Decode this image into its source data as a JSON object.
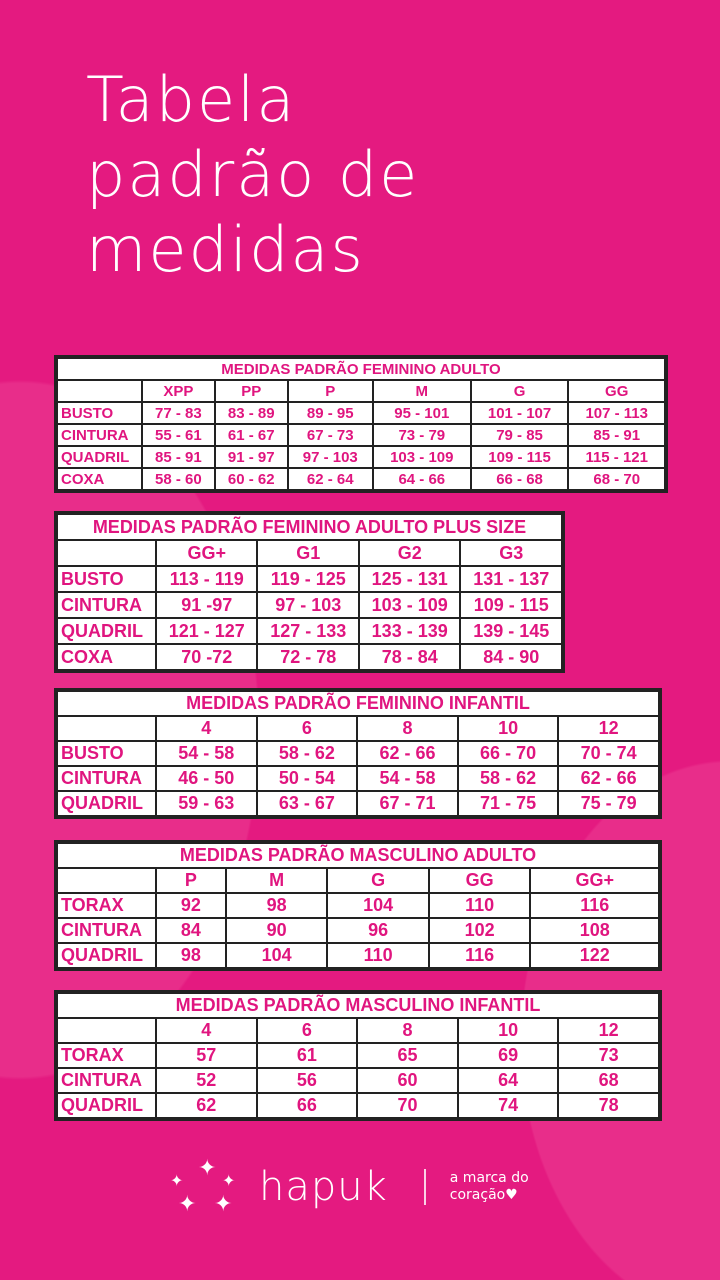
{
  "title": {
    "line1": "Tabela",
    "line2": "padrão de",
    "line3": "medidas"
  },
  "colors": {
    "background": "#e41a80",
    "text_in_table": "#e0157f"
  },
  "tables": [
    {
      "title": "MEDIDAS PADRÃO FEMININO ADULTO",
      "sizes": [
        "XPP",
        "PP",
        "P",
        "M",
        "G",
        "GG"
      ],
      "rows": [
        {
          "label": "BUSTO",
          "values": [
            "77 - 83",
            "83 - 89",
            "89 - 95",
            "95 - 101",
            "101 - 107",
            "107 - 113"
          ]
        },
        {
          "label": "CINTURA",
          "values": [
            "55 - 61",
            "61 - 67",
            "67 - 73",
            "73 - 79",
            "79 - 85",
            "85 - 91"
          ]
        },
        {
          "label": "QUADRIL",
          "values": [
            "85 - 91",
            "91 - 97",
            "97 - 103",
            "103 - 109",
            "109 - 115",
            "115 - 121"
          ]
        },
        {
          "label": "COXA",
          "values": [
            "58 - 60",
            "60 - 62",
            "62 - 64",
            "64 - 66",
            "66 - 68",
            "68 - 70"
          ]
        }
      ]
    },
    {
      "title": "MEDIDAS PADRÃO FEMININO ADULTO PLUS SIZE",
      "sizes": [
        "GG+",
        "G1",
        "G2",
        "G3"
      ],
      "rows": [
        {
          "label": "BUSTO",
          "values": [
            "113 - 119",
            "119 - 125",
            "125 - 131",
            "131 - 137"
          ]
        },
        {
          "label": "CINTURA",
          "values": [
            "91 -97",
            "97 - 103",
            "103 - 109",
            "109 - 115"
          ]
        },
        {
          "label": "QUADRIL",
          "values": [
            "121 - 127",
            "127 - 133",
            "133 - 139",
            "139 - 145"
          ]
        },
        {
          "label": "COXA",
          "values": [
            "70 -72",
            "72 - 78",
            "78 - 84",
            "84 - 90"
          ]
        }
      ]
    },
    {
      "title": "MEDIDAS PADRÃO FEMININO INFANTIL",
      "sizes": [
        "4",
        "6",
        "8",
        "10",
        "12"
      ],
      "rows": [
        {
          "label": "BUSTO",
          "values": [
            "54 - 58",
            "58 - 62",
            "62 - 66",
            "66 - 70",
            "70 - 74"
          ]
        },
        {
          "label": "CINTURA",
          "values": [
            "46 - 50",
            "50 - 54",
            "54 - 58",
            "58 - 62",
            "62 - 66"
          ]
        },
        {
          "label": "QUADRIL",
          "values": [
            "59 - 63",
            "63 - 67",
            "67 - 71",
            "71 - 75",
            "75 - 79"
          ]
        }
      ]
    },
    {
      "title": "MEDIDAS PADRÃO MASCULINO ADULTO",
      "sizes": [
        "P",
        "M",
        "G",
        "GG",
        "GG+"
      ],
      "rows": [
        {
          "label": "TORAX",
          "values": [
            "92",
            "98",
            "104",
            "110",
            "116"
          ]
        },
        {
          "label": "CINTURA",
          "values": [
            "84",
            "90",
            "96",
            "102",
            "108"
          ]
        },
        {
          "label": "QUADRIL",
          "values": [
            "98",
            "104",
            "110",
            "116",
            "122"
          ]
        }
      ]
    },
    {
      "title": "MEDIDAS PADRÃO MASCULINO INFANTIL",
      "sizes": [
        "4",
        "6",
        "8",
        "10",
        "12"
      ],
      "rows": [
        {
          "label": "TORAX",
          "values": [
            "57",
            "61",
            "65",
            "69",
            "73"
          ]
        },
        {
          "label": "CINTURA",
          "values": [
            "52",
            "56",
            "60",
            "64",
            "68"
          ]
        },
        {
          "label": "QUADRIL",
          "values": [
            "62",
            "66",
            "70",
            "74",
            "78"
          ]
        }
      ]
    }
  ],
  "footer": {
    "brand": "hapuk",
    "tagline1": "a marca do",
    "tagline2": "coração",
    "heart": "♥",
    "logo_icon": "sparkles-icon"
  }
}
